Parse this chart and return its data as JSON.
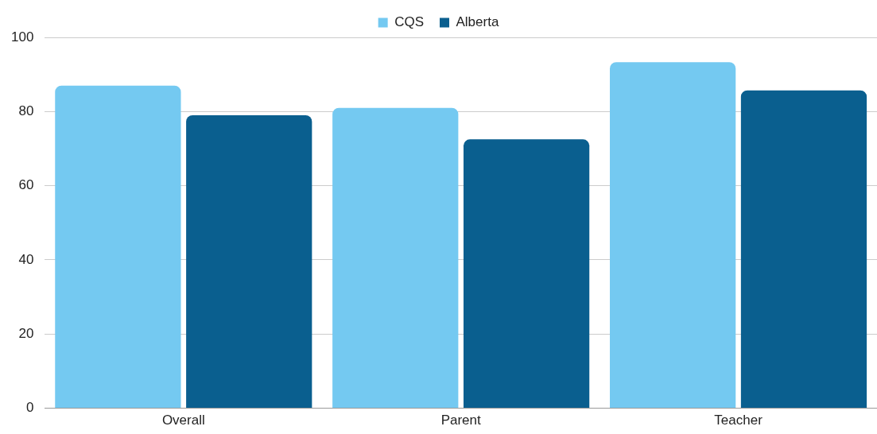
{
  "chart_data": {
    "type": "bar",
    "categories": [
      "Overall",
      "Parent",
      "Teacher"
    ],
    "series": [
      {
        "name": "CQS",
        "color": "#74c9f1",
        "values": [
          87,
          81,
          93.3
        ]
      },
      {
        "name": "Alberta",
        "color": "#0a5f8f",
        "values": [
          79,
          72.5,
          85.7
        ]
      }
    ],
    "ylim": [
      0,
      100
    ],
    "yticks": [
      0,
      20,
      40,
      60,
      80,
      100
    ],
    "grid": "y",
    "legend": "top"
  }
}
